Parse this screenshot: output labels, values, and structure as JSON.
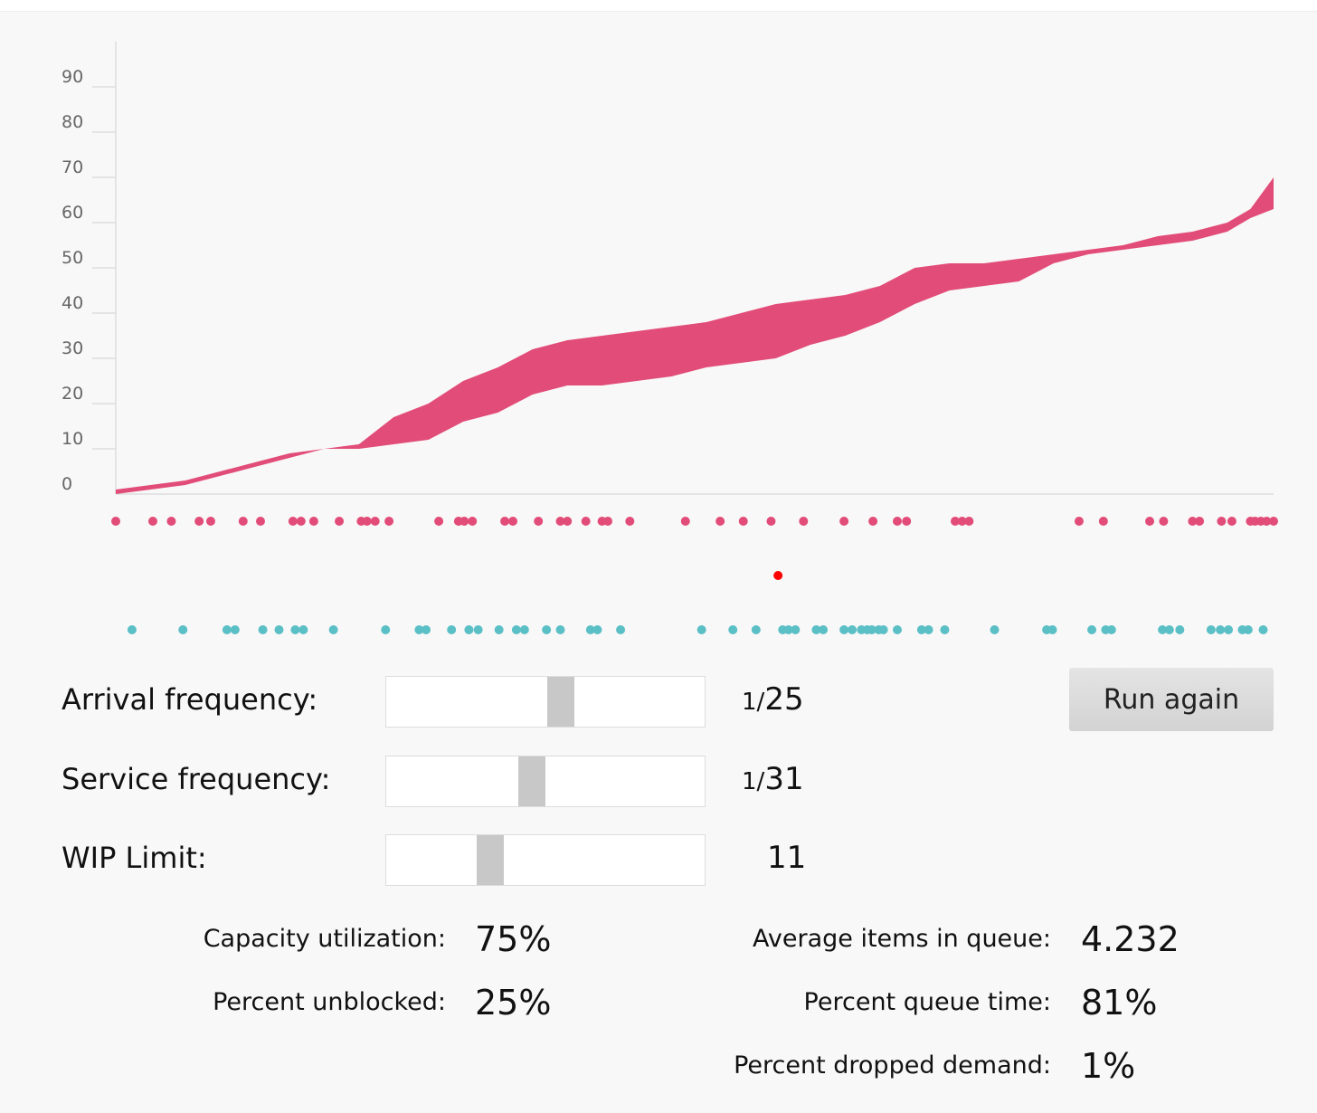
{
  "chart_data": {
    "type": "area",
    "ylim": [
      0,
      100
    ],
    "y_ticks": [
      0,
      10,
      20,
      30,
      40,
      50,
      60,
      70,
      80,
      90
    ],
    "x_range": [
      0,
      100
    ],
    "grid": false,
    "colors": {
      "band": "#e24c78",
      "arrival_dots": "#e24c78",
      "service_dots": "#5bbfc6",
      "marker": "#ff0000",
      "axis": "#dddddd"
    },
    "series": [
      {
        "x": [
          0,
          3,
          6,
          9,
          12,
          15,
          18,
          21,
          24,
          27,
          30,
          33,
          36,
          39,
          42,
          45,
          48,
          51,
          54,
          57,
          60,
          63,
          66,
          69,
          72,
          75,
          78,
          81,
          84,
          87,
          90,
          93,
          96,
          98,
          100
        ],
        "upper": [
          1,
          2,
          3,
          5,
          7,
          9,
          10,
          11,
          17,
          20,
          25,
          28,
          32,
          34,
          35,
          36,
          37,
          38,
          40,
          42,
          43,
          44,
          46,
          50,
          51,
          51,
          52,
          53,
          54,
          55,
          57,
          58,
          60,
          63,
          70
        ],
        "lower": [
          0,
          1,
          2,
          4,
          6,
          8,
          10,
          10,
          11,
          12,
          16,
          18,
          22,
          24,
          24,
          25,
          26,
          28,
          29,
          30,
          33,
          35,
          38,
          42,
          45,
          46,
          47,
          51,
          53,
          54,
          55,
          56,
          58,
          61,
          63
        ]
      }
    ],
    "arrival_events": [
      0,
      3.2,
      4.8,
      7.2,
      8.2,
      11,
      12.5,
      15.3,
      16,
      17.1,
      19.3,
      21.2,
      21.7,
      22.4,
      23.6,
      27.9,
      29.6,
      30.1,
      30.8,
      33.6,
      34.3,
      36.5,
      38.4,
      39,
      40.6,
      42,
      42.5,
      44.4,
      49.2,
      52.2,
      54.2,
      56.6,
      59.4,
      62.9,
      65.4,
      67.5,
      68.3,
      72.5,
      73.1,
      73.7,
      83.2,
      85.3,
      89.3,
      90.5,
      93,
      93.6,
      95.5,
      96.4,
      98,
      98.4,
      98.9,
      99.4,
      100
    ],
    "service_events": [
      1.4,
      5.8,
      9.6,
      10.3,
      12.7,
      14.1,
      15.5,
      16.2,
      18.8,
      23.3,
      26.2,
      26.8,
      29,
      30.5,
      31.3,
      33.1,
      34.6,
      35.3,
      37.2,
      38.4,
      41,
      41.6,
      43.6,
      50.6,
      53.3,
      55.3,
      57.6,
      58.1,
      58.7,
      60.5,
      61.1,
      62.9,
      63.6,
      64.4,
      64.9,
      65.3,
      65.9,
      66.3,
      67.5,
      69.6,
      70.2,
      71.6,
      75.9,
      80.4,
      80.9,
      84.3,
      85.5,
      86,
      90.4,
      91,
      91.9,
      94.6,
      95.4,
      96.1,
      97.3,
      97.8,
      99.1
    ],
    "marker_event": 57.2
  },
  "controls": {
    "arrival": {
      "label": "Arrival frequency:",
      "prefix": "1/",
      "value": "25",
      "level": 0.55
    },
    "service": {
      "label": "Service frequency:",
      "prefix": "1/",
      "value": "31",
      "level": 0.45
    },
    "wip": {
      "label": "WIP Limit:",
      "value": "11",
      "level": 0.31
    },
    "run_button": "Run again"
  },
  "stats": {
    "capacity_utilization": {
      "label": "Capacity utilization:",
      "value": "75%"
    },
    "percent_unblocked": {
      "label": "Percent unblocked:",
      "value": "25%"
    },
    "avg_items_in_queue": {
      "label": "Average items in queue:",
      "value": "4.232"
    },
    "percent_queue_time": {
      "label": "Percent queue time:",
      "value": "81%"
    },
    "percent_dropped_demand": {
      "label": "Percent dropped demand:",
      "value": "1%"
    }
  }
}
